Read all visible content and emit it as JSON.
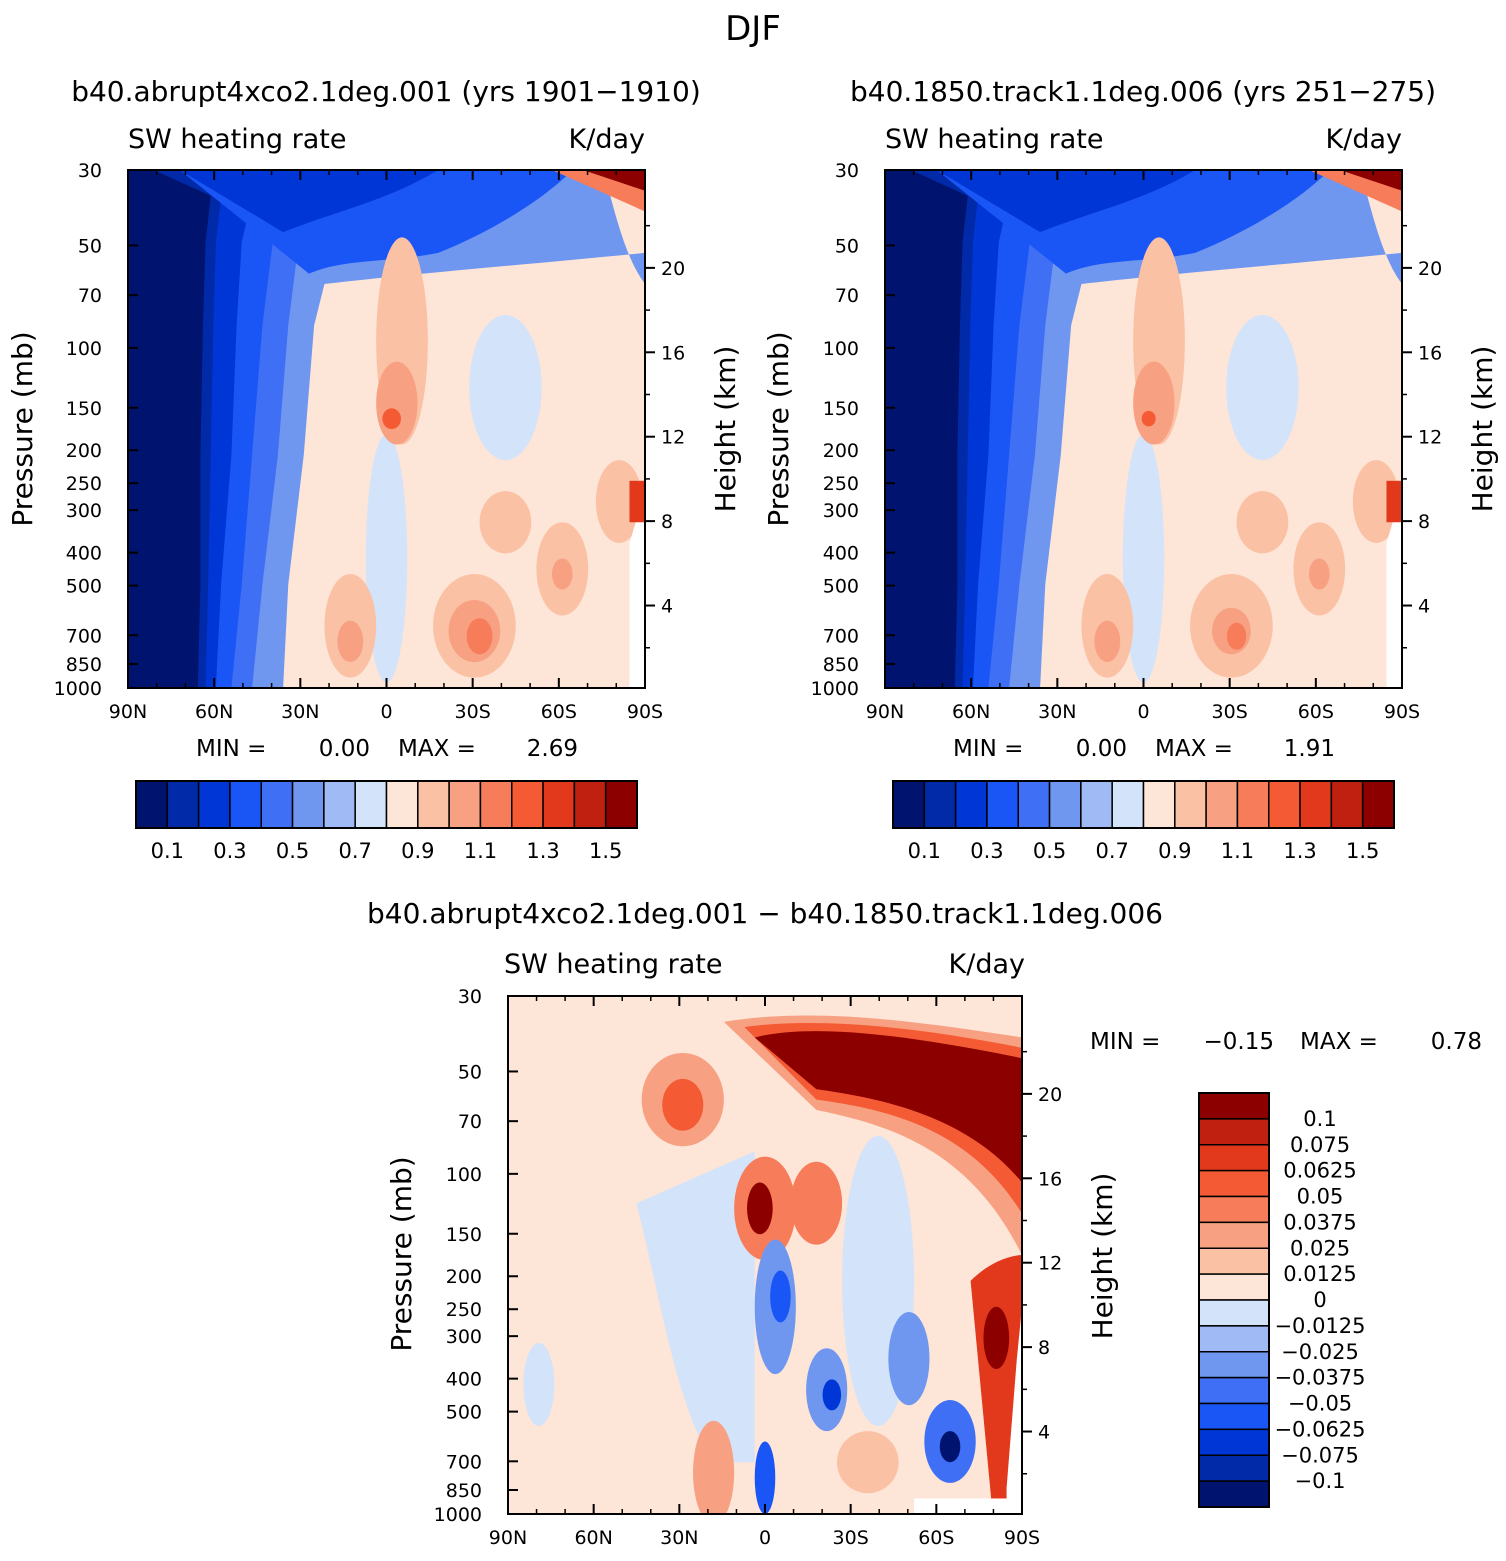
{
  "figure_title": "DJF",
  "colors": {
    "seq": [
      "#00136e",
      "#002aa8",
      "#0036d6",
      "#1a55f5",
      "#3f6ff5",
      "#6f97f0",
      "#9fbaf5",
      "#d2e3fa",
      "#fde5d8",
      "#fbc1a5",
      "#f7a182",
      "#f77d5a",
      "#f45a34",
      "#e2381b",
      "#bf200f",
      "#8c0000"
    ],
    "diff": [
      "#00136e",
      "#002aa8",
      "#0036d6",
      "#1a55f5",
      "#3f6ff5",
      "#6f97f0",
      "#9fbaf5",
      "#d2e3fa",
      "#fde5d8",
      "#fbc1a5",
      "#f7a182",
      "#f77d5a",
      "#f45a34",
      "#e2381b",
      "#bf200f",
      "#8c0000"
    ]
  },
  "chart_data": [
    {
      "type": "heatmap",
      "title": "b40.abrupt4xco2.1deg.001 (yrs 1901−1910)",
      "left_header": "SW heating rate",
      "right_header": "K/day",
      "xlabel": "",
      "ylabel": "Pressure (mb)",
      "ylabel_right": "Height (km)",
      "x_ticks": [
        "90N",
        "60N",
        "30N",
        "0",
        "30S",
        "60S",
        "90S"
      ],
      "x_range": [
        90,
        -90
      ],
      "y_range_mb": [
        30,
        1000
      ],
      "pressure_ticks": [
        "30",
        "50",
        "70",
        "100",
        "150",
        "200",
        "250",
        "300",
        "400",
        "500",
        "700",
        "850",
        "1000"
      ],
      "height_ticks_km": [
        "20",
        "16",
        "12",
        "8",
        "4"
      ],
      "min_label": "MIN =",
      "min_value": "0.00",
      "max_label": "MAX =",
      "max_value": "2.69",
      "colorbar_labels": [
        "0.1",
        "0.3",
        "0.5",
        "0.7",
        "0.9",
        "1.1",
        "1.3",
        "1.5"
      ],
      "levels": [
        0.1,
        0.2,
        0.3,
        0.4,
        0.5,
        0.6,
        0.7,
        0.8,
        0.9,
        1.0,
        1.1,
        1.2,
        1.3,
        1.4,
        1.5
      ]
    },
    {
      "type": "heatmap",
      "title": "b40.1850.track1.1deg.006 (yrs 251−275)",
      "left_header": "SW heating rate",
      "right_header": "K/day",
      "xlabel": "",
      "ylabel": "Pressure (mb)",
      "ylabel_right": "Height (km)",
      "x_ticks": [
        "90N",
        "60N",
        "30N",
        "0",
        "30S",
        "60S",
        "90S"
      ],
      "x_range": [
        90,
        -90
      ],
      "y_range_mb": [
        30,
        1000
      ],
      "pressure_ticks": [
        "30",
        "50",
        "70",
        "100",
        "150",
        "200",
        "250",
        "300",
        "400",
        "500",
        "700",
        "850",
        "1000"
      ],
      "height_ticks_km": [
        "20",
        "16",
        "12",
        "8",
        "4"
      ],
      "min_label": "MIN =",
      "min_value": "0.00",
      "max_label": "MAX =",
      "max_value": "1.91",
      "colorbar_labels": [
        "0.1",
        "0.3",
        "0.5",
        "0.7",
        "0.9",
        "1.1",
        "1.3",
        "1.5"
      ],
      "levels": [
        0.1,
        0.2,
        0.3,
        0.4,
        0.5,
        0.6,
        0.7,
        0.8,
        0.9,
        1.0,
        1.1,
        1.2,
        1.3,
        1.4,
        1.5
      ]
    },
    {
      "type": "heatmap",
      "title": "b40.abrupt4xco2.1deg.001 − b40.1850.track1.1deg.006",
      "left_header": "SW heating rate",
      "right_header": "K/day",
      "xlabel": "",
      "ylabel": "Pressure (mb)",
      "ylabel_right": "Height (km)",
      "x_ticks": [
        "90N",
        "60N",
        "30N",
        "0",
        "30S",
        "60S",
        "90S"
      ],
      "x_range": [
        90,
        -90
      ],
      "y_range_mb": [
        30,
        1000
      ],
      "pressure_ticks": [
        "30",
        "50",
        "70",
        "100",
        "150",
        "200",
        "250",
        "300",
        "400",
        "500",
        "700",
        "850",
        "1000"
      ],
      "height_ticks_km": [
        "20",
        "16",
        "12",
        "8",
        "4"
      ],
      "min_label": "MIN =",
      "min_value": "−0.15",
      "max_label": "MAX =",
      "max_value": "0.78",
      "colorbar_labels": [
        "0.1",
        "0.075",
        "0.0625",
        "0.05",
        "0.0375",
        "0.025",
        "0.0125",
        "0",
        "−0.0125",
        "−0.025",
        "−0.0375",
        "−0.05",
        "−0.0625",
        "−0.075",
        "−0.1"
      ],
      "levels": [
        -0.1,
        -0.075,
        -0.0625,
        -0.05,
        -0.0375,
        -0.025,
        -0.0125,
        0,
        0.0125,
        0.025,
        0.0375,
        0.05,
        0.0625,
        0.075,
        0.1
      ]
    }
  ]
}
